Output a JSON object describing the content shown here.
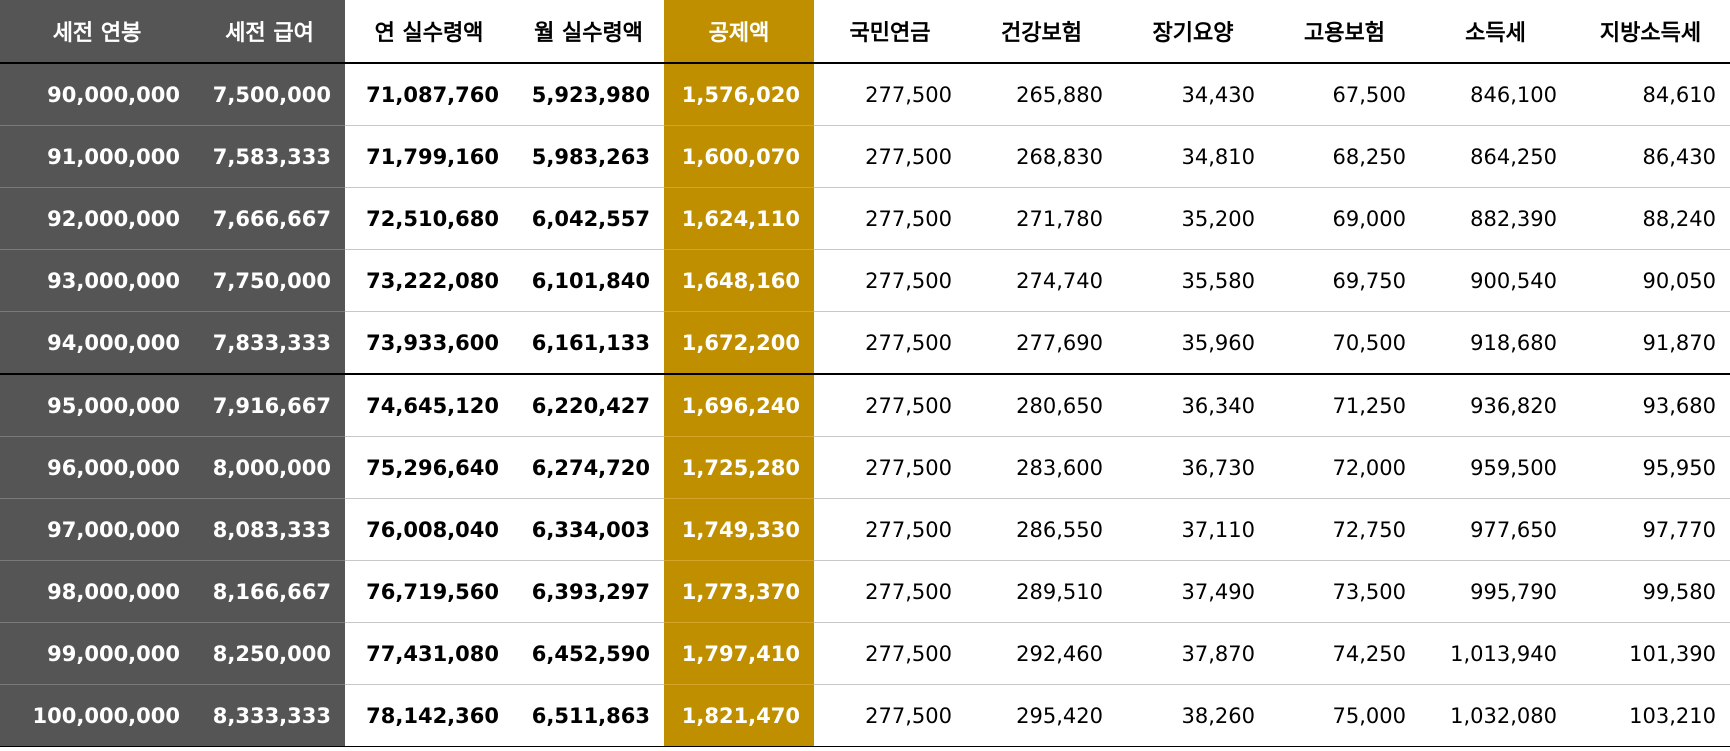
{
  "table": {
    "headers": [
      "세전 연봉",
      "세전 급여",
      "연 실수령액",
      "월 실수령액",
      "공제액",
      "국민연금",
      "건강보험",
      "장기요양",
      "고용보험",
      "소득세",
      "지방소득세"
    ],
    "rows": [
      [
        "90,000,000",
        "7,500,000",
        "71,087,760",
        "5,923,980",
        "1,576,020",
        "277,500",
        "265,880",
        "34,430",
        "67,500",
        "846,100",
        "84,610"
      ],
      [
        "91,000,000",
        "7,583,333",
        "71,799,160",
        "5,983,263",
        "1,600,070",
        "277,500",
        "268,830",
        "34,810",
        "68,250",
        "864,250",
        "86,430"
      ],
      [
        "92,000,000",
        "7,666,667",
        "72,510,680",
        "6,042,557",
        "1,624,110",
        "277,500",
        "271,780",
        "35,200",
        "69,000",
        "882,390",
        "88,240"
      ],
      [
        "93,000,000",
        "7,750,000",
        "73,222,080",
        "6,101,840",
        "1,648,160",
        "277,500",
        "274,740",
        "35,580",
        "69,750",
        "900,540",
        "90,050"
      ],
      [
        "94,000,000",
        "7,833,333",
        "73,933,600",
        "6,161,133",
        "1,672,200",
        "277,500",
        "277,690",
        "35,960",
        "70,500",
        "918,680",
        "91,870"
      ],
      [
        "95,000,000",
        "7,916,667",
        "74,645,120",
        "6,220,427",
        "1,696,240",
        "277,500",
        "280,650",
        "36,340",
        "71,250",
        "936,820",
        "93,680"
      ],
      [
        "96,000,000",
        "8,000,000",
        "75,296,640",
        "6,274,720",
        "1,725,280",
        "277,500",
        "283,600",
        "36,730",
        "72,000",
        "959,500",
        "95,950"
      ],
      [
        "97,000,000",
        "8,083,333",
        "76,008,040",
        "6,334,003",
        "1,749,330",
        "277,500",
        "286,550",
        "37,110",
        "72,750",
        "977,650",
        "97,770"
      ],
      [
        "98,000,000",
        "8,166,667",
        "76,719,560",
        "6,393,297",
        "1,773,370",
        "277,500",
        "289,510",
        "37,490",
        "73,500",
        "995,790",
        "99,580"
      ],
      [
        "99,000,000",
        "8,250,000",
        "77,431,080",
        "6,452,590",
        "1,797,410",
        "277,500",
        "292,460",
        "37,870",
        "74,250",
        "1,013,940",
        "101,390"
      ],
      [
        "100,000,000",
        "8,333,333",
        "78,142,360",
        "6,511,863",
        "1,821,470",
        "277,500",
        "295,420",
        "38,260",
        "75,000",
        "1,032,080",
        "103,210"
      ]
    ]
  },
  "colors": {
    "dark_fill": "#555555",
    "gold_fill": "#bf8f00",
    "header_text_on_fill": "#ffffff"
  }
}
